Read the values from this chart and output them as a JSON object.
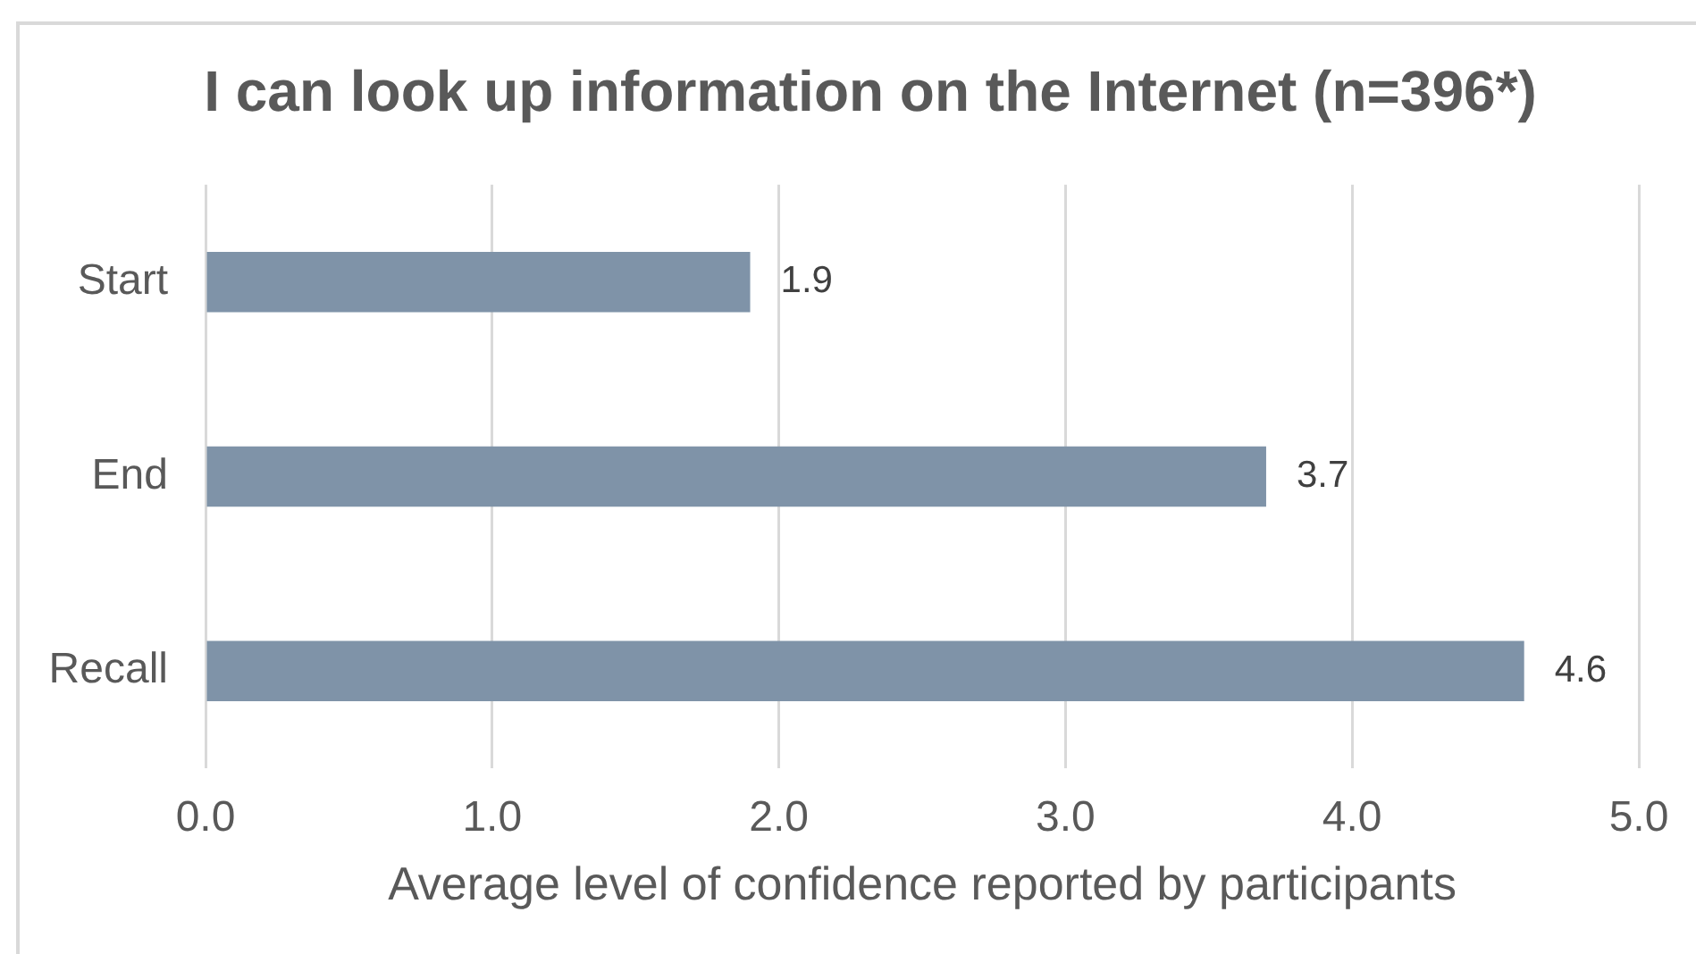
{
  "chart_data": {
    "type": "bar",
    "orientation": "horizontal",
    "title": "I can look up information on the Internet (n=396*)",
    "xlabel": "Average level of confidence reported by participants",
    "categories": [
      "Start",
      "End",
      "Recall"
    ],
    "values": [
      1.9,
      3.7,
      4.6
    ],
    "color": "#7f93a8",
    "xlim": [
      0,
      5
    ],
    "xticks": [
      {
        "value": 0,
        "label": "0.0"
      },
      {
        "value": 1,
        "label": "1.0"
      },
      {
        "value": 2,
        "label": "2.0"
      },
      {
        "value": 3,
        "label": "3.0"
      },
      {
        "value": 4,
        "label": "4.0"
      },
      {
        "value": 5,
        "label": "5.0"
      }
    ],
    "grid": "x",
    "data_labels": true
  }
}
